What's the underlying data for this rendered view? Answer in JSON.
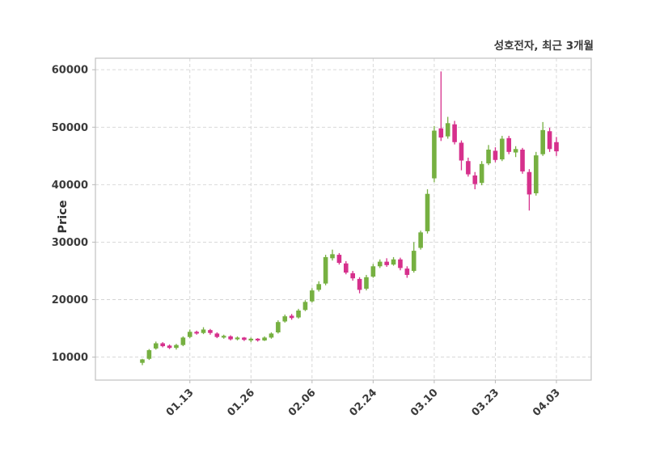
{
  "chart_data": {
    "type": "candlestick",
    "title": "성호전자, 최근 3개월",
    "ylabel": "Price",
    "up_color": "#76b041",
    "down_color": "#d6308c",
    "grid": "dashed-lightgray",
    "legend": "none",
    "ylim": [
      6000,
      62000
    ],
    "y_ticks": [
      10000,
      20000,
      30000,
      40000,
      50000,
      60000
    ],
    "x_tick_labels": [
      "01.13",
      "01.26",
      "02.06",
      "02.24",
      "03.10",
      "03.23",
      "04.03"
    ],
    "x_tick_indices": [
      7,
      16,
      25,
      34,
      43,
      52,
      61
    ],
    "candles_format": "open-high-low-close",
    "candles": [
      [
        9000,
        9700,
        8600,
        9600
      ],
      [
        9700,
        11400,
        9500,
        11200
      ],
      [
        11500,
        12700,
        11300,
        12400
      ],
      [
        12400,
        12600,
        11700,
        11900
      ],
      [
        12000,
        12200,
        11400,
        11600
      ],
      [
        11600,
        12300,
        11300,
        12100
      ],
      [
        12100,
        13600,
        11900,
        13400
      ],
      [
        13500,
        14800,
        13300,
        14400
      ],
      [
        14400,
        14600,
        13900,
        14100
      ],
      [
        14200,
        15200,
        14000,
        14800
      ],
      [
        14700,
        14900,
        13900,
        14200
      ],
      [
        14100,
        14300,
        13300,
        13500
      ],
      [
        13400,
        13900,
        13200,
        13700
      ],
      [
        13600,
        13800,
        12900,
        13100
      ],
      [
        13100,
        13600,
        12900,
        13400
      ],
      [
        13400,
        13500,
        12800,
        13000
      ],
      [
        12900,
        13400,
        12600,
        13200
      ],
      [
        13200,
        13300,
        12700,
        12900
      ],
      [
        12900,
        13600,
        12800,
        13400
      ],
      [
        13400,
        14300,
        13200,
        14100
      ],
      [
        14300,
        16400,
        14100,
        16100
      ],
      [
        16200,
        17400,
        16000,
        17100
      ],
      [
        17200,
        17500,
        16500,
        16800
      ],
      [
        16900,
        18400,
        16700,
        18100
      ],
      [
        18200,
        19900,
        18000,
        19600
      ],
      [
        19700,
        22000,
        19500,
        21600
      ],
      [
        21700,
        23200,
        21400,
        22700
      ],
      [
        22800,
        27800,
        22500,
        27400
      ],
      [
        27200,
        28700,
        26800,
        27900
      ],
      [
        27800,
        28100,
        26100,
        26400
      ],
      [
        26300,
        26700,
        24400,
        24700
      ],
      [
        24600,
        25000,
        23300,
        23700
      ],
      [
        23600,
        23900,
        21100,
        21700
      ],
      [
        21900,
        24300,
        21600,
        23900
      ],
      [
        24000,
        26200,
        23800,
        25800
      ],
      [
        25800,
        27000,
        25500,
        26600
      ],
      [
        26600,
        27200,
        25700,
        26000
      ],
      [
        26100,
        27400,
        25900,
        27000
      ],
      [
        27000,
        27300,
        25100,
        25500
      ],
      [
        25400,
        25800,
        23800,
        24300
      ],
      [
        25000,
        30000,
        24700,
        28500
      ],
      [
        29000,
        32000,
        28700,
        31700
      ],
      [
        31900,
        39200,
        31500,
        38400
      ],
      [
        41100,
        50200,
        40400,
        49400
      ],
      [
        49800,
        59700,
        47600,
        48200
      ],
      [
        48400,
        51800,
        48000,
        50700
      ],
      [
        50500,
        51100,
        47000,
        47400
      ],
      [
        47300,
        47700,
        42500,
        44200
      ],
      [
        44100,
        44700,
        41400,
        41800
      ],
      [
        41600,
        42200,
        39200,
        40100
      ],
      [
        40300,
        44100,
        39900,
        43600
      ],
      [
        43700,
        46900,
        43400,
        46100
      ],
      [
        45900,
        46500,
        43900,
        44300
      ],
      [
        44400,
        48500,
        44100,
        48000
      ],
      [
        48100,
        48500,
        45300,
        45700
      ],
      [
        45600,
        46700,
        44800,
        46200
      ],
      [
        46100,
        46400,
        41900,
        42300
      ],
      [
        42200,
        42700,
        35500,
        38300
      ],
      [
        38500,
        45700,
        38100,
        45100
      ],
      [
        45300,
        50900,
        45000,
        49500
      ],
      [
        49300,
        49900,
        45700,
        46200
      ],
      [
        47400,
        48300,
        45000,
        45800
      ]
    ]
  }
}
